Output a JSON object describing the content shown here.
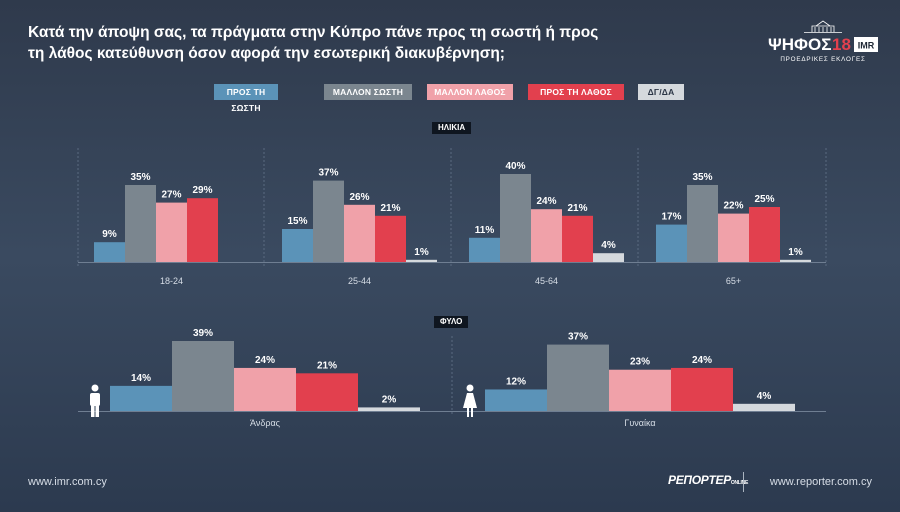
{
  "title_lines": [
    "Κατά την άποψη σας, τα πράγματα στην Κύπρο πάνε προς τη σωστή ή προς",
    "τη λάθος κατεύθυνση όσον αφορά την εσωτερική διακυβέρνηση;"
  ],
  "logo": {
    "main": "ΨΗΦΟΣ",
    "year": "18",
    "badge": "IMR",
    "sub": "ΠΡΟΕΔΡΙΚΕΣ ΕΚΛΟΓΕΣ"
  },
  "legend": [
    {
      "label": "ΠΡΟΣ ΤΗ ΣΩΣΤΗ",
      "color": "#5b93b8"
    },
    {
      "label": "ΜΑΛΛΟΝ ΣΩΣΤΗ",
      "color": "#7b868f"
    },
    {
      "label": "ΜΑΛΛΟΝ ΛΑΘΟΣ",
      "color": "#f0a1a9"
    },
    {
      "label": "ΠΡΟΣ ΤΗ ΛΑΘΟΣ",
      "color": "#e2404e"
    },
    {
      "label": "ΔΓ/ΔΑ",
      "color": "#d5d9dd"
    }
  ],
  "sections": {
    "age_label": "ΗΛΙΚΙΑ",
    "gender_label": "ΦΥΛΟ"
  },
  "chart_data": [
    {
      "type": "bar",
      "title": "ΗΛΙΚΙΑ",
      "categories": [
        "18-24",
        "25-44",
        "45-64",
        "65+"
      ],
      "series": [
        {
          "name": "ΠΡΟΣ ΤΗ ΣΩΣΤΗ",
          "values": [
            9,
            15,
            11,
            17
          ],
          "labels": [
            "9%",
            "15%",
            "11%",
            "17%"
          ]
        },
        {
          "name": "ΜΑΛΛΟΝ ΣΩΣΤΗ",
          "values": [
            35,
            37,
            40,
            35
          ],
          "labels": [
            "35%",
            "37%",
            "40%",
            "35%"
          ]
        },
        {
          "name": "ΜΑΛΛΟΝ ΛΑΘΟΣ",
          "values": [
            27,
            26,
            24,
            22
          ],
          "labels": [
            "27%",
            "26%",
            "24%",
            "22%"
          ]
        },
        {
          "name": "ΠΡΟΣ ΤΗ ΛΑΘΟΣ",
          "values": [
            29,
            21,
            21,
            25
          ],
          "labels": [
            "29%",
            "21%",
            "21%",
            "25%"
          ]
        },
        {
          "name": "ΔΓ/ΔΑ",
          "values": [
            null,
            1,
            4,
            1
          ],
          "labels": [
            "",
            "1%",
            "4%",
            "1%"
          ]
        }
      ],
      "ylim": [
        0,
        40
      ]
    },
    {
      "type": "bar",
      "title": "ΦΥΛΟ",
      "categories": [
        "Άνδρας",
        "Γυναίκα"
      ],
      "series": [
        {
          "name": "ΠΡΟΣ ΤΗ ΣΩΣΤΗ",
          "values": [
            14,
            12
          ],
          "labels": [
            "14%",
            "12%"
          ]
        },
        {
          "name": "ΜΑΛΛΟΝ ΣΩΣΤΗ",
          "values": [
            39,
            37
          ],
          "labels": [
            "39%",
            "37%"
          ]
        },
        {
          "name": "ΜΑΛΛΟΝ ΛΑΘΟΣ",
          "values": [
            24,
            23
          ],
          "labels": [
            "24%",
            "23%"
          ]
        },
        {
          "name": "ΠΡΟΣ ΤΗ ΛΑΘΟΣ",
          "values": [
            21,
            24
          ],
          "labels": [
            "21%",
            "24%"
          ]
        },
        {
          "name": "ΔΓ/ΔΑ",
          "values": [
            2,
            4
          ],
          "labels": [
            "2%",
            "4%"
          ]
        }
      ],
      "icons": [
        "male-icon",
        "female-icon"
      ],
      "ylim": [
        0,
        39
      ]
    }
  ],
  "footer": {
    "left": "www.imr.com.cy",
    "brand": "ΡΕΠΟΡΤΕΡ",
    "brand_suffix": "ONLINE",
    "right": "www.reporter.com.cy"
  }
}
